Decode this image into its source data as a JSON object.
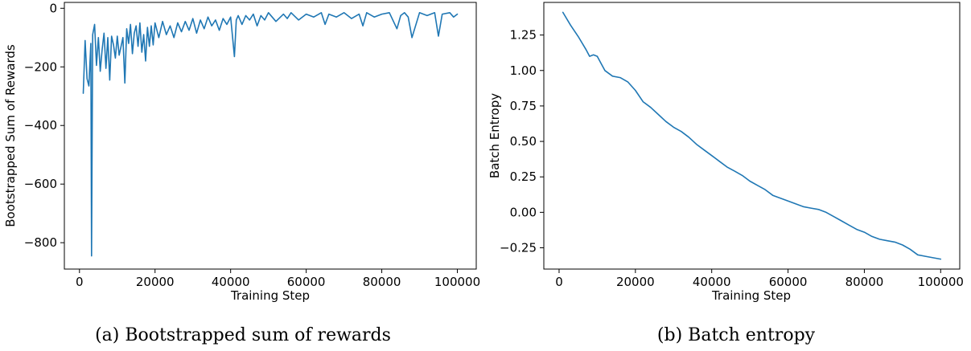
{
  "chart_data": [
    {
      "type": "line",
      "caption": "(a) Bootstrapped sum of rewards",
      "xlabel": "Training Step",
      "ylabel": "Bootstrapped Sum of Rewards",
      "xlim": [
        -4000,
        105000
      ],
      "ylim": [
        -890,
        20
      ],
      "xticks": [
        0,
        20000,
        40000,
        60000,
        80000,
        100000
      ],
      "yticks": [
        0,
        -200,
        -400,
        -600,
        -800
      ],
      "grid": false,
      "color": "#1f77b4",
      "series": [
        {
          "x": [
            1000,
            1500,
            2000,
            2500,
            3000,
            3200,
            3500,
            4000,
            4500,
            5000,
            5500,
            6000,
            6500,
            7000,
            7500,
            8000,
            8500,
            9000,
            9500,
            10000,
            10500,
            11000,
            11500,
            12000,
            12500,
            13000,
            13500,
            14000,
            14500,
            15000,
            15500,
            16000,
            16500,
            17000,
            17500,
            18000,
            18500,
            19000,
            19500,
            20000,
            21000,
            22000,
            23000,
            24000,
            25000,
            26000,
            27000,
            28000,
            29000,
            30000,
            31000,
            32000,
            33000,
            34000,
            35000,
            36000,
            37000,
            38000,
            39000,
            40000,
            41000,
            41500,
            42000,
            43000,
            44000,
            45000,
            46000,
            47000,
            48000,
            49000,
            50000,
            52000,
            54000,
            55000,
            56000,
            58000,
            60000,
            62000,
            64000,
            65000,
            66000,
            68000,
            70000,
            72000,
            74000,
            75000,
            76000,
            78000,
            80000,
            82000,
            84000,
            85000,
            86000,
            87000,
            88000,
            90000,
            92000,
            94000,
            95000,
            96000,
            98000,
            99000,
            100000
          ],
          "y": [
            -290,
            -110,
            -240,
            -265,
            -120,
            -845,
            -90,
            -55,
            -195,
            -100,
            -215,
            -140,
            -85,
            -205,
            -100,
            -245,
            -95,
            -125,
            -170,
            -95,
            -160,
            -130,
            -100,
            -255,
            -70,
            -120,
            -55,
            -155,
            -85,
            -60,
            -130,
            -50,
            -150,
            -90,
            -180,
            -65,
            -130,
            -60,
            -125,
            -50,
            -100,
            -45,
            -90,
            -60,
            -100,
            -50,
            -80,
            -45,
            -75,
            -35,
            -85,
            -40,
            -70,
            -30,
            -60,
            -40,
            -75,
            -35,
            -55,
            -30,
            -165,
            -40,
            -25,
            -55,
            -25,
            -40,
            -20,
            -60,
            -25,
            -40,
            -15,
            -45,
            -20,
            -35,
            -15,
            -40,
            -20,
            -30,
            -15,
            -55,
            -20,
            -30,
            -15,
            -35,
            -20,
            -60,
            -15,
            -30,
            -20,
            -15,
            -70,
            -25,
            -15,
            -30,
            -100,
            -15,
            -25,
            -15,
            -95,
            -20,
            -15,
            -30,
            -20
          ]
        }
      ]
    },
    {
      "type": "line",
      "caption": "(b) Batch entropy",
      "xlabel": "Training Step",
      "ylabel": "Batch Entropy",
      "xlim": [
        -4000,
        105000
      ],
      "ylim": [
        -0.4,
        1.48
      ],
      "xticks": [
        0,
        20000,
        40000,
        60000,
        80000,
        100000
      ],
      "yticks": [
        1.25,
        1.0,
        0.75,
        0.5,
        0.25,
        0.0,
        -0.25
      ],
      "ytick_labels": [
        "1.25",
        "1.00",
        "0.75",
        "0.50",
        "0.25",
        "0.00",
        "−0.25"
      ],
      "grid": false,
      "color": "#1f77b4",
      "series": [
        {
          "x": [
            1000,
            3000,
            5000,
            7000,
            8000,
            9000,
            10000,
            11000,
            12000,
            14000,
            16000,
            18000,
            20000,
            22000,
            24000,
            26000,
            28000,
            30000,
            32000,
            34000,
            36000,
            38000,
            40000,
            42000,
            44000,
            46000,
            48000,
            50000,
            52000,
            54000,
            56000,
            58000,
            60000,
            62000,
            64000,
            66000,
            68000,
            70000,
            72000,
            74000,
            76000,
            78000,
            80000,
            82000,
            84000,
            86000,
            88000,
            90000,
            92000,
            94000,
            96000,
            98000,
            100000
          ],
          "y": [
            1.41,
            1.32,
            1.24,
            1.15,
            1.1,
            1.11,
            1.1,
            1.05,
            1.0,
            0.96,
            0.95,
            0.92,
            0.86,
            0.78,
            0.74,
            0.69,
            0.64,
            0.6,
            0.57,
            0.53,
            0.48,
            0.44,
            0.4,
            0.36,
            0.32,
            0.29,
            0.26,
            0.22,
            0.19,
            0.16,
            0.12,
            0.1,
            0.08,
            0.06,
            0.04,
            0.03,
            0.02,
            0.0,
            -0.03,
            -0.06,
            -0.09,
            -0.12,
            -0.14,
            -0.17,
            -0.19,
            -0.2,
            -0.21,
            -0.23,
            -0.26,
            -0.3,
            -0.31,
            -0.32,
            -0.33
          ]
        }
      ]
    }
  ]
}
